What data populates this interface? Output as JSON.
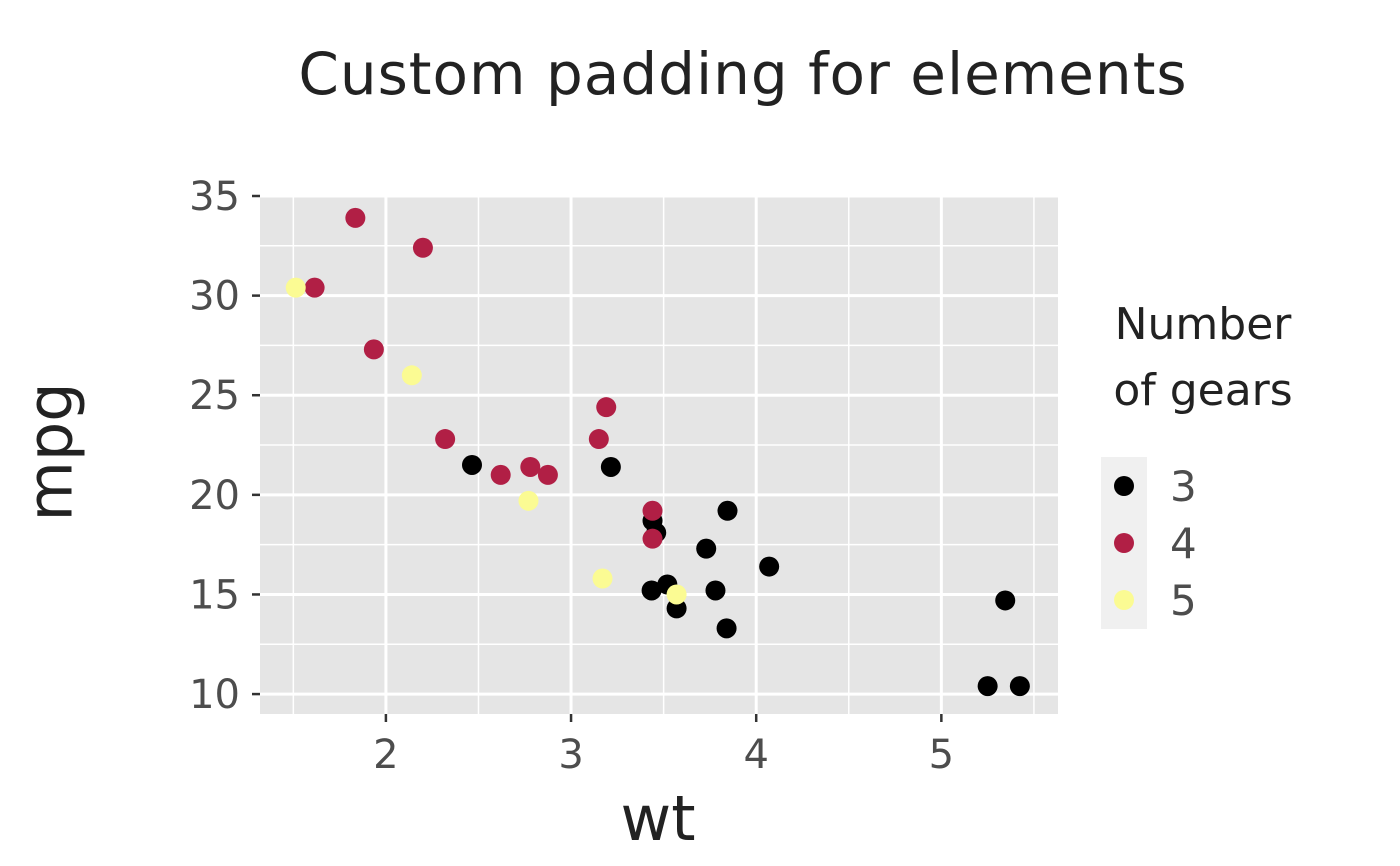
{
  "title": "Custom padding for elements",
  "chart_data": {
    "type": "scatter",
    "title": "Custom padding for elements",
    "xlabel": "wt",
    "ylabel": "mpg",
    "xlim": [
      1.32,
      5.63
    ],
    "ylim": [
      9.0,
      35.0
    ],
    "x_ticks": [
      2,
      3,
      4,
      5
    ],
    "y_ticks": [
      10,
      15,
      20,
      25,
      30,
      35
    ],
    "x_tick_labels": [
      "2",
      "3",
      "4",
      "5"
    ],
    "y_tick_labels": [
      "10",
      "15",
      "20",
      "25",
      "30",
      "35"
    ],
    "grid": true,
    "legend": {
      "title_lines": [
        "Number",
        "of gears"
      ],
      "position": "right",
      "entries": [
        {
          "label": "3",
          "color": "#000000"
        },
        {
          "label": "4",
          "color": "#b11f45"
        },
        {
          "label": "5",
          "color": "#fbfb93"
        }
      ]
    },
    "series": [
      {
        "name": "3",
        "color": "#000000",
        "points": [
          [
            2.465,
            21.5
          ],
          [
            3.215,
            21.4
          ],
          [
            3.44,
            18.7
          ],
          [
            3.46,
            18.1
          ],
          [
            3.57,
            14.3
          ],
          [
            3.73,
            17.3
          ],
          [
            3.78,
            15.2
          ],
          [
            3.84,
            13.3
          ],
          [
            3.845,
            19.2
          ],
          [
            4.07,
            16.4
          ],
          [
            3.435,
            15.2
          ],
          [
            3.52,
            15.5
          ],
          [
            5.25,
            10.4
          ],
          [
            5.345,
            14.7
          ],
          [
            5.424,
            10.4
          ]
        ]
      },
      {
        "name": "4",
        "color": "#b11f45",
        "points": [
          [
            1.835,
            33.9
          ],
          [
            2.2,
            32.4
          ],
          [
            1.615,
            30.4
          ],
          [
            1.935,
            27.3
          ],
          [
            2.32,
            22.8
          ],
          [
            2.62,
            21.0
          ],
          [
            2.78,
            21.4
          ],
          [
            2.875,
            21.0
          ],
          [
            3.15,
            22.8
          ],
          [
            3.19,
            24.4
          ],
          [
            3.44,
            19.2
          ],
          [
            3.44,
            17.8
          ]
        ]
      },
      {
        "name": "5",
        "color": "#fbfb93",
        "points": [
          [
            1.513,
            30.4
          ],
          [
            2.14,
            26.0
          ],
          [
            2.77,
            19.7
          ],
          [
            3.17,
            15.8
          ],
          [
            3.57,
            15.0
          ]
        ]
      }
    ]
  },
  "colors": {
    "panel": "#e5e5e5",
    "grid": "#ffffff",
    "legend_key_bg": "#f0f0f0",
    "tick_text": "#4d4d4d",
    "title_text": "#222222"
  }
}
